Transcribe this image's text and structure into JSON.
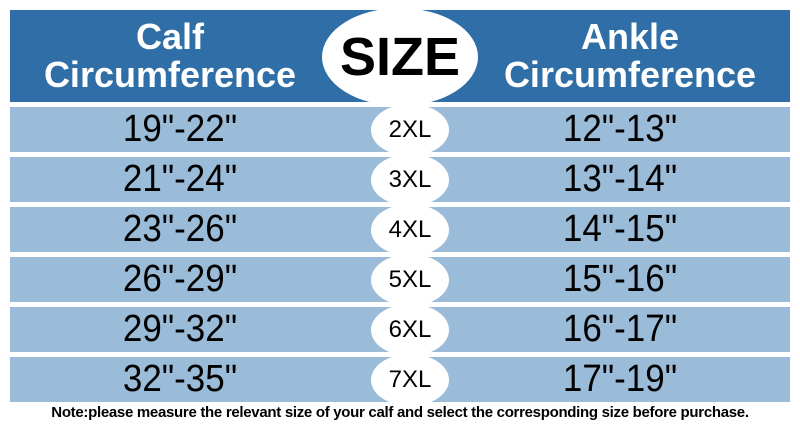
{
  "header": {
    "calf_line1": "Calf",
    "calf_line2": "Circumference",
    "size": "SIZE",
    "ankle_line1": "Ankle",
    "ankle_line2": "Circumference"
  },
  "rows": [
    {
      "calf": "19\"-22\"",
      "size": "2XL",
      "ankle": "12\"-13\""
    },
    {
      "calf": "21\"-24\"",
      "size": "3XL",
      "ankle": "13\"-14\""
    },
    {
      "calf": "23\"-26\"",
      "size": "4XL",
      "ankle": "14\"-15\""
    },
    {
      "calf": "26\"-29\"",
      "size": "5XL",
      "ankle": "15\"-16\""
    },
    {
      "calf": "29\"-32\"",
      "size": "6XL",
      "ankle": "16\"-17\""
    },
    {
      "calf": "32\"-35\"",
      "size": "7XL",
      "ankle": "17\"-19\""
    }
  ],
  "note": "Note:please measure the relevant size of your calf and select the corresponding size before purchase.",
  "colors": {
    "header": "#2f6ea6",
    "row": "#9bbcd9"
  }
}
